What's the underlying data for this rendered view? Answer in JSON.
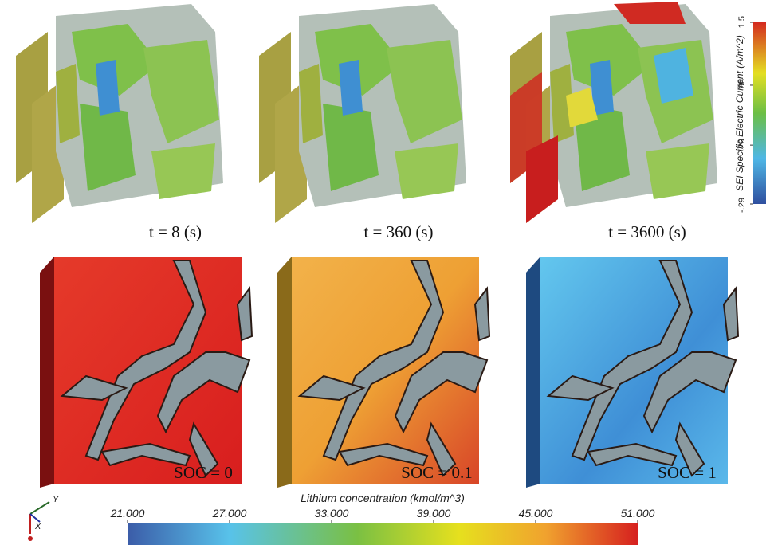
{
  "top_row": {
    "labels": [
      "t = 8 (s)",
      "t = 360 (s)",
      "t = 3600 (s)"
    ]
  },
  "bottom_row": {
    "labels": [
      "SOC = 0",
      "SOC = 0.1",
      "SOC = 1"
    ]
  },
  "current_colorbar": {
    "title": "SEI Specific Electric Current (A/m^2)",
    "ticks": [
      {
        "value": 1.5,
        "label": "1.5"
      },
      {
        "value": 0.88,
        "label": ".88"
      },
      {
        "value": 0.29,
        "label": ".29"
      },
      {
        "value": -0.29,
        "label": "-.29"
      }
    ]
  },
  "concentration_colorbar": {
    "title": "Lithium concentration (kmol/m^3)",
    "ticks": [
      {
        "value": 21,
        "label": "21.000"
      },
      {
        "value": 27,
        "label": "27.000"
      },
      {
        "value": 33,
        "label": "33.000"
      },
      {
        "value": 39,
        "label": "39.000"
      },
      {
        "value": 45,
        "label": "45.000"
      },
      {
        "value": 51,
        "label": "51.000"
      }
    ]
  },
  "axes_triad": {
    "y_label": "Y",
    "x_label": "X"
  }
}
